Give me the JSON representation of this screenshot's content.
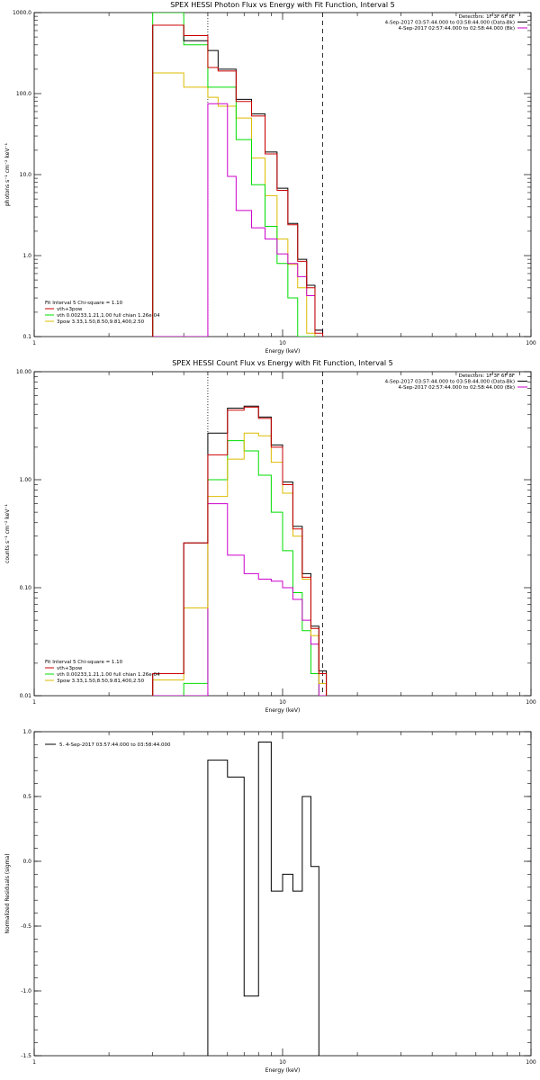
{
  "colors": {
    "data": "#000000",
    "bk": "#cc00cc",
    "total": "#cc0000",
    "vth": "#00dd00",
    "bpow": "#ddbb00"
  },
  "chart_data": [
    {
      "type": "line",
      "title": "SPEX HESSI Photon Flux vs Energy with Fit Function, Interval 5",
      "xlabel": "Energy (keV)",
      "ylabel": "photons s⁻¹ cm⁻² keV⁻¹",
      "xscale": "log",
      "yscale": "log",
      "xlim": [
        1,
        100
      ],
      "ylim": [
        0.1,
        1000
      ],
      "xticks": [
        {
          "v": 1,
          "t": "1"
        },
        {
          "v": 10,
          "t": "10"
        },
        {
          "v": 100,
          "t": "100"
        }
      ],
      "yticks": [
        {
          "v": 0.1,
          "t": "0.1"
        },
        {
          "v": 1,
          "t": "1.0"
        },
        {
          "v": 10,
          "t": "10.0"
        },
        {
          "v": 100,
          "t": "100.0"
        },
        {
          "v": 1000,
          "t": "1000.0"
        }
      ],
      "vlines": [
        {
          "x": 5.0,
          "style": "dotted"
        },
        {
          "x": 14.5,
          "style": "dashed"
        }
      ],
      "info": [
        "Detectors: 1F 3F 6F 8F",
        "4-Sep-2017 03:57:44.000 to 03:58:44.000 (Data-Bk)",
        "4-Sep-2017 02:57:44.000 to 02:58:44.000 (Bk)"
      ],
      "info_legend": [
        {
          "text": "Detectors: 1F 3F 6F 8F",
          "color": ""
        },
        {
          "text": "4-Sep-2017 03:57:44.000 to 03:58:44.000 (Data-Bk)",
          "color": "#000000"
        },
        {
          "text": "4-Sep-2017 02:57:44.000 to 02:58:44.000 (Bk)",
          "color": "#cc00cc"
        }
      ],
      "fit_label": "Fit Interval 5   Chi-square = 1.10",
      "legend": [
        {
          "text": "vth+3pow",
          "color": "#cc0000"
        },
        {
          "text": "vth 0.00233,1.21,1.00  full chian 1.26e-04",
          "color": "#00dd00"
        },
        {
          "text": "3pow 3.33,1.50,8.50,9.81,400,2.50",
          "color": "#ddbb00"
        }
      ],
      "edges": [
        3,
        4,
        5,
        5.5,
        6,
        6.5,
        7,
        7.5,
        8,
        8.5,
        9,
        9.5,
        10,
        10.5,
        11,
        11.5,
        12,
        12.5,
        13,
        13.5,
        14,
        14.5,
        15,
        15.5
      ],
      "series": [
        {
          "key": "bpow",
          "color": "#ddbb00",
          "values": [
            180,
            120,
            90,
            70,
            70,
            50,
            50,
            16,
            16,
            5.5,
            5.5,
            1.6,
            1.6,
            0.78,
            0.78,
            0.4,
            0.4,
            0.11,
            0.11
          ]
        },
        {
          "key": "vth",
          "color": "#00dd00",
          "values": [
            1000,
            400,
            120,
            120,
            120,
            27,
            27,
            7.5,
            7.5,
            2.3,
            2.3,
            0.8,
            0.8,
            0.3,
            0.3,
            0.1,
            0.1,
            0.1,
            0.1
          ]
        },
        {
          "key": "bk",
          "color": "#cc00cc",
          "values": [
            0.1,
            0.1,
            75,
            75,
            9.5,
            3.6,
            3.6,
            2.2,
            2.2,
            1.6,
            1.6,
            1.05,
            1.05,
            0.8,
            0.8,
            0.55,
            0.55,
            0.32,
            0.32,
            0.12,
            0.12
          ]
        },
        {
          "key": "data",
          "color": "#000000",
          "values": [
            700,
            450,
            340,
            200,
            200,
            85,
            85,
            56,
            56,
            19,
            19,
            6.8,
            6.8,
            2.5,
            2.5,
            0.9,
            0.9,
            0.43,
            0.43,
            0.12,
            0.12
          ]
        },
        {
          "key": "total",
          "color": "#cc0000",
          "values": [
            700,
            520,
            210,
            190,
            190,
            80,
            80,
            53,
            53,
            18,
            18,
            6.4,
            6.4,
            2.4,
            2.4,
            0.85,
            0.85,
            0.4,
            0.4,
            0.11,
            0.11
          ]
        }
      ]
    },
    {
      "type": "line",
      "title": "SPEX HESSI Count Flux vs Energy with Fit Function, Interval 5",
      "xlabel": "Energy (keV)",
      "ylabel": "counts s⁻¹ cm⁻² keV⁻¹",
      "xscale": "log",
      "yscale": "log",
      "xlim": [
        1,
        100
      ],
      "ylim": [
        0.01,
        10
      ],
      "xticks": [
        {
          "v": 1,
          "t": "1"
        },
        {
          "v": 10,
          "t": "10"
        },
        {
          "v": 100,
          "t": "100"
        }
      ],
      "yticks": [
        {
          "v": 0.01,
          "t": "0.01"
        },
        {
          "v": 0.1,
          "t": "0.10"
        },
        {
          "v": 1,
          "t": "1.00"
        },
        {
          "v": 10,
          "t": "10.00"
        }
      ],
      "vlines": [
        {
          "x": 5.0,
          "style": "dotted"
        },
        {
          "x": 14.5,
          "style": "dashed"
        }
      ],
      "info": [
        "Detectors: 1F 3F 6F 8F",
        "4-Sep-2017 03:57:44.000 to 03:58:44.000 (Data-Bk)",
        "4-Sep-2017 02:57:44.000 to 02:58:44.000 (Bk)"
      ],
      "info_legend": [
        {
          "text": "Detectors: 1F 3F 6F 8F",
          "color": ""
        },
        {
          "text": "4-Sep-2017 03:57:44.000 to 03:58:44.000 (Data-Bk)",
          "color": "#000000"
        },
        {
          "text": "4-Sep-2017 02:57:44.000 to 02:58:44.000 (Bk)",
          "color": "#cc00cc"
        }
      ],
      "fit_label": "Fit Interval 5   Chi-square = 1.10",
      "legend": [
        {
          "text": "vth+3pow",
          "color": "#cc0000"
        },
        {
          "text": "vth 0.00233,1.21,1.00  full chian 1.26e-04",
          "color": "#00dd00"
        },
        {
          "text": "3pow 3.33,1.50,8.50,9.81,400,2.50",
          "color": "#ddbb00"
        }
      ],
      "edges": [
        3,
        4,
        5,
        5.5,
        6,
        6.5,
        7,
        7.5,
        8,
        8.5,
        9,
        9.5,
        10,
        10.5,
        11,
        11.5,
        12,
        12.5,
        13,
        13.5,
        14,
        14.5,
        15,
        15.5
      ],
      "series": [
        {
          "key": "vth",
          "color": "#00dd00",
          "values": [
            0.01,
            0.013,
            1.0,
            1.0,
            2.3,
            2.3,
            1.85,
            1.85,
            1.1,
            1.1,
            0.5,
            0.5,
            0.22,
            0.22,
            0.09,
            0.09,
            0.04,
            0.04,
            0.016,
            0.016,
            0.01
          ]
        },
        {
          "key": "bk",
          "color": "#cc00cc",
          "values": [
            0.01,
            0.01,
            0.6,
            0.6,
            0.2,
            0.2,
            0.135,
            0.135,
            0.12,
            0.12,
            0.115,
            0.115,
            0.1,
            0.1,
            0.078,
            0.078,
            0.05,
            0.05,
            0.03,
            0.03,
            0.01,
            0.01
          ]
        },
        {
          "key": "bpow",
          "color": "#ddbb00",
          "values": [
            0.014,
            0.065,
            0.7,
            0.7,
            1.55,
            1.55,
            2.7,
            2.7,
            2.55,
            2.55,
            1.45,
            1.45,
            0.75,
            0.75,
            0.3,
            0.3,
            0.12,
            0.12,
            0.036,
            0.036,
            0.013,
            0.013
          ]
        },
        {
          "key": "data",
          "color": "#000000",
          "values": [
            0.016,
            0.26,
            2.7,
            2.7,
            4.6,
            4.6,
            4.8,
            4.8,
            3.8,
            3.8,
            2.1,
            2.1,
            0.95,
            0.95,
            0.37,
            0.37,
            0.135,
            0.135,
            0.044,
            0.044,
            0.017,
            0.017
          ]
        },
        {
          "key": "total",
          "color": "#cc0000",
          "values": [
            0.016,
            0.26,
            1.7,
            1.7,
            4.4,
            4.4,
            4.7,
            4.7,
            3.7,
            3.7,
            2.0,
            2.0,
            0.9,
            0.9,
            0.35,
            0.35,
            0.125,
            0.125,
            0.042,
            0.042,
            0.016,
            0.016
          ]
        }
      ]
    },
    {
      "type": "line",
      "title": "",
      "xlabel": "Energy (keV)",
      "ylabel": "Normalized Residuals (sigma)",
      "xscale": "log",
      "yscale": "linear",
      "xlim": [
        1,
        100
      ],
      "ylim": [
        -1.5,
        1.0
      ],
      "xticks": [
        {
          "v": 1,
          "t": "1"
        },
        {
          "v": 10,
          "t": "10"
        },
        {
          "v": 100,
          "t": "100"
        }
      ],
      "yticks": [
        {
          "v": -1.5,
          "t": "-1.5"
        },
        {
          "v": -1.0,
          "t": "-1.0"
        },
        {
          "v": -0.5,
          "t": "-0.5"
        },
        {
          "v": 0.0,
          "t": "0.0"
        },
        {
          "v": 0.5,
          "t": "0.5"
        },
        {
          "v": 1.0,
          "t": "1.0"
        }
      ],
      "vlines": [],
      "legend": [
        {
          "text": "5.  4-Sep-2017 03:57:44.000 to 03:58:44.000",
          "color": "#000000"
        }
      ],
      "edges": [
        5.0,
        6.0,
        7.0,
        8.0,
        9.0,
        10.0,
        11.0,
        12.0,
        13.0,
        14.0,
        15.0
      ],
      "series": [
        {
          "key": "resid",
          "color": "#000000",
          "values": [
            0.78,
            0.65,
            -1.04,
            0.92,
            -0.23,
            -0.1,
            -0.23,
            0.5,
            -0.04
          ]
        }
      ],
      "ymin_baseline": -1.5
    }
  ]
}
